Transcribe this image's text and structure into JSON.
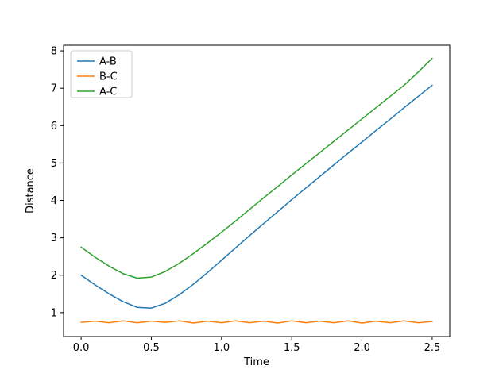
{
  "figure": {
    "background": "#ffffff"
  },
  "chart_data": {
    "type": "line",
    "title": "",
    "xlabel": "Time",
    "ylabel": "Distance",
    "grid": false,
    "legend_position": "upper left",
    "xlim": [
      -0.125,
      2.625
    ],
    "ylim": [
      0.36,
      8.15
    ],
    "xticks": [
      0.0,
      0.5,
      1.0,
      1.5,
      2.0,
      2.5
    ],
    "xtick_labels": [
      "0.0",
      "0.5",
      "1.0",
      "1.5",
      "2.0",
      "2.5"
    ],
    "yticks": [
      1,
      2,
      3,
      4,
      5,
      6,
      7,
      8
    ],
    "ytick_labels": [
      "1",
      "2",
      "3",
      "4",
      "5",
      "6",
      "7",
      "8"
    ],
    "x": [
      0.0,
      0.1,
      0.2,
      0.3,
      0.4,
      0.5,
      0.6,
      0.7,
      0.8,
      0.9,
      1.0,
      1.1,
      1.2,
      1.3,
      1.4,
      1.5,
      1.6,
      1.7,
      1.8,
      1.9,
      2.0,
      2.1,
      2.2,
      2.3,
      2.4,
      2.5
    ],
    "series": [
      {
        "name": "A-B",
        "color": "#1f77b4",
        "values": [
          2.0,
          1.74,
          1.5,
          1.29,
          1.14,
          1.12,
          1.25,
          1.48,
          1.76,
          2.07,
          2.4,
          2.73,
          3.06,
          3.38,
          3.7,
          4.02,
          4.33,
          4.64,
          4.95,
          5.26,
          5.56,
          5.87,
          6.17,
          6.48,
          6.78,
          7.08
        ]
      },
      {
        "name": "B-C",
        "color": "#ff7f0e",
        "values": [
          0.74,
          0.77,
          0.73,
          0.78,
          0.73,
          0.77,
          0.74,
          0.78,
          0.72,
          0.77,
          0.73,
          0.78,
          0.73,
          0.77,
          0.72,
          0.78,
          0.73,
          0.77,
          0.73,
          0.78,
          0.72,
          0.77,
          0.73,
          0.78,
          0.73,
          0.76
        ]
      },
      {
        "name": "A-C",
        "color": "#2ca02c",
        "values": [
          2.75,
          2.48,
          2.24,
          2.04,
          1.92,
          1.95,
          2.1,
          2.32,
          2.58,
          2.86,
          3.15,
          3.45,
          3.76,
          4.07,
          4.37,
          4.68,
          4.98,
          5.28,
          5.58,
          5.88,
          6.18,
          6.48,
          6.78,
          7.08,
          7.43,
          7.8
        ]
      }
    ]
  }
}
